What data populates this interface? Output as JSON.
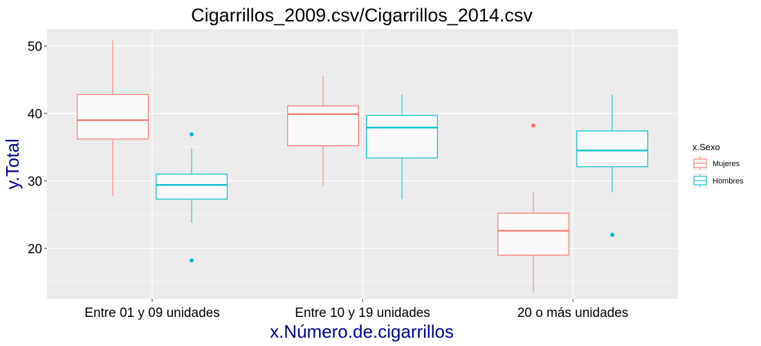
{
  "chart_data": {
    "type": "boxplot",
    "title": "Cigarrillos_2009.csv/Cigarrillos_2014.csv",
    "xlabel": "x.Número.de.cigarrillos",
    "ylabel": "y.Total",
    "ylim": [
      12.5,
      52.5
    ],
    "yticks": [
      20,
      30,
      40,
      50
    ],
    "grid": true,
    "legend_position": "right",
    "legend_title": "x.Sexo",
    "categories": [
      "Entre 01 y 09 unidades",
      "Entre 10 y 19 unidades",
      "20 o más unidades"
    ],
    "series": [
      {
        "name": "Mujeres",
        "color": "#F8766D",
        "boxes": [
          {
            "whisker_low": 27.8,
            "q1": 36.2,
            "median": 39.0,
            "q3": 42.8,
            "whisker_high": 50.8,
            "outliers": []
          },
          {
            "whisker_low": 29.2,
            "q1": 35.2,
            "median": 39.9,
            "q3": 41.1,
            "whisker_high": 45.5,
            "outliers": []
          },
          {
            "whisker_low": 13.4,
            "q1": 19.0,
            "median": 22.6,
            "q3": 25.2,
            "whisker_high": 28.3,
            "outliers": [
              38.2
            ]
          }
        ]
      },
      {
        "name": "Hombres",
        "color": "#00BFC4",
        "boxes": [
          {
            "whisker_low": 23.8,
            "q1": 27.3,
            "median": 29.4,
            "q3": 31.0,
            "whisker_high": 34.8,
            "outliers": [
              18.2,
              36.9
            ]
          },
          {
            "whisker_low": 27.3,
            "q1": 33.4,
            "median": 37.9,
            "q3": 39.7,
            "whisker_high": 42.8,
            "outliers": []
          },
          {
            "whisker_low": 28.3,
            "q1": 32.1,
            "median": 34.5,
            "q3": 37.4,
            "whisker_high": 42.8,
            "outliers": [
              22.0
            ]
          }
        ]
      }
    ]
  }
}
